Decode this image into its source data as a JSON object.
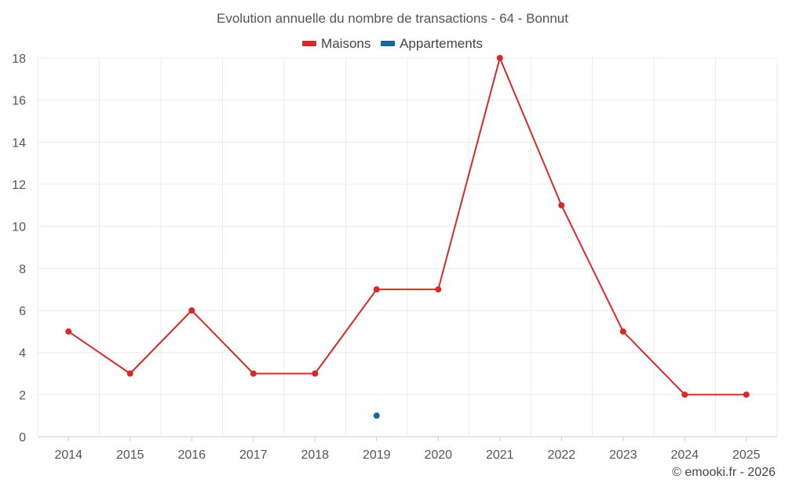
{
  "chart_data": {
    "type": "line",
    "title": "Evolution annuelle du nombre de transactions - 64 - Bonnut",
    "categories": [
      "2014",
      "2015",
      "2016",
      "2017",
      "2018",
      "2019",
      "2020",
      "2021",
      "2022",
      "2023",
      "2024",
      "2025"
    ],
    "series": [
      {
        "name": "Maisons",
        "color": "#d42a2a",
        "values": [
          5,
          3,
          6,
          3,
          3,
          7,
          7,
          18,
          11,
          5,
          2,
          2
        ]
      },
      {
        "name": "Appartements",
        "color": "#1866a0",
        "values": [
          null,
          null,
          null,
          null,
          null,
          1,
          null,
          null,
          null,
          null,
          null,
          null
        ]
      }
    ],
    "ylim": [
      0,
      18
    ],
    "yticks": [
      0,
      2,
      4,
      6,
      8,
      10,
      12,
      14,
      16,
      18
    ],
    "grid": true,
    "legend_position": "top-center"
  },
  "footer": {
    "credit": "© emooki.fr - 2026"
  }
}
